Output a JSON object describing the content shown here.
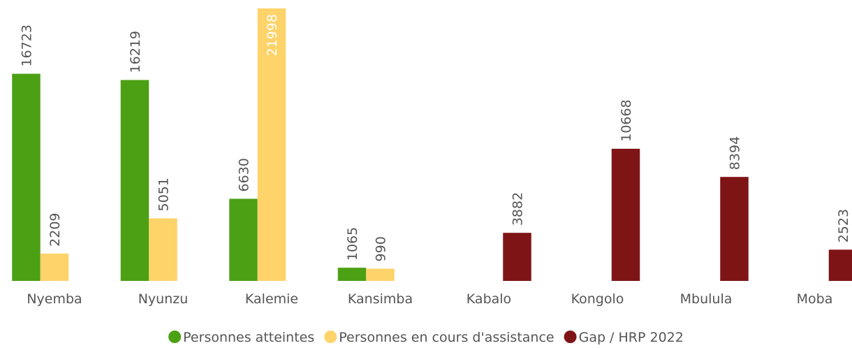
{
  "chart_data": {
    "type": "bar",
    "categories": [
      "Nyemba",
      "Nyunzu",
      "Kalemie",
      "Kansimba",
      "Kabalo",
      "Kongolo",
      "Mbulula",
      "Moba"
    ],
    "series": [
      {
        "name": "Personnes atteintes",
        "color": "#4ca014",
        "values": [
          16723,
          16219,
          6630,
          1065,
          null,
          null,
          null,
          null
        ]
      },
      {
        "name": "Personnes en cours d'assistance",
        "color": "#fdd36a",
        "values": [
          2209,
          5051,
          21998,
          990,
          null,
          null,
          null,
          null
        ]
      },
      {
        "name": "Gap / HRP 2022",
        "color": "#7f1416",
        "values": [
          null,
          null,
          null,
          null,
          3882,
          10668,
          8394,
          2523
        ]
      }
    ],
    "ylim": [
      0,
      22000
    ]
  }
}
